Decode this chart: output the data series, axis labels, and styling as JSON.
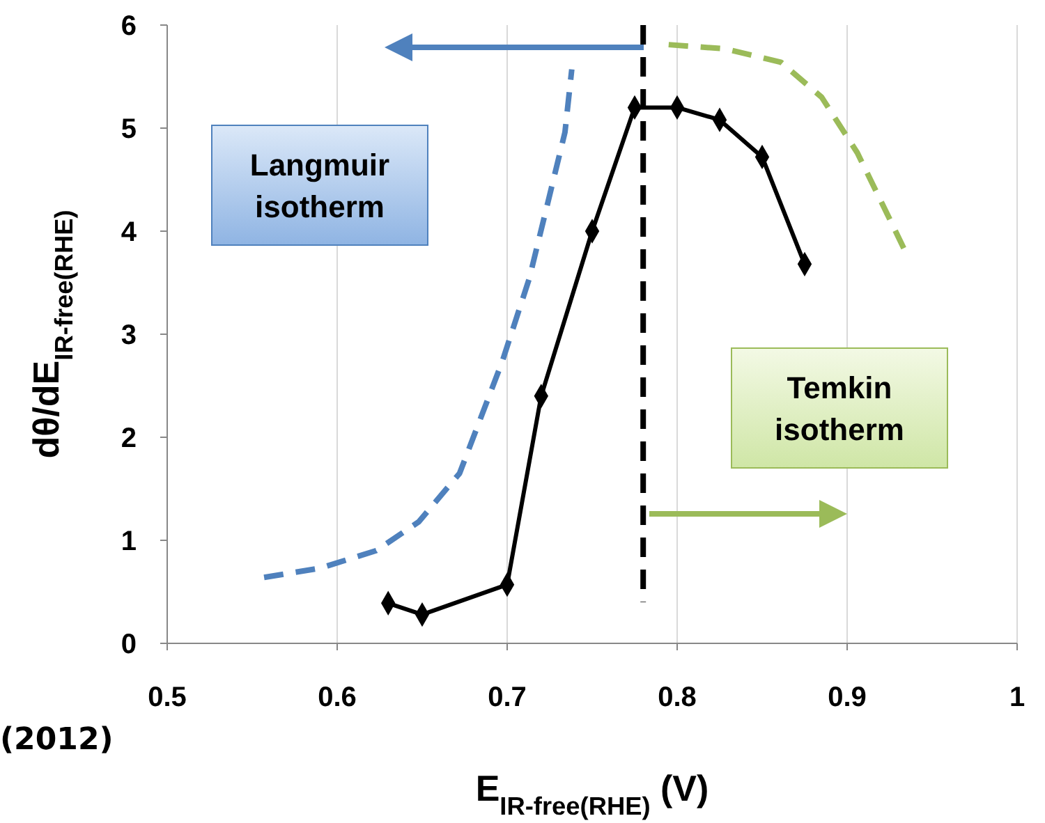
{
  "chart_data": {
    "type": "line",
    "xlabel": "E$_{IR-free(RHE)}$ (V)",
    "ylabel": "dθ/dE$_{IR-free(RHE)}$",
    "xlim": [
      0.5,
      1
    ],
    "xticks": [
      0.5,
      0.6,
      0.7,
      0.8,
      0.9,
      1
    ],
    "ylim": [
      0,
      6
    ],
    "yticks": [
      0,
      1,
      2,
      3,
      4,
      5,
      6
    ],
    "grid": "x",
    "series": [
      {
        "color": "#4f81bd",
        "line_style": "dashed",
        "marker": "none",
        "x": [
          0.557,
          0.59,
          0.623,
          0.648,
          0.672,
          0.697,
          0.713,
          0.725,
          0.734,
          0.738
        ],
        "values": [
          0.64,
          0.73,
          0.9,
          1.18,
          1.65,
          2.73,
          3.54,
          4.35,
          4.96,
          5.57
        ]
      },
      {
        "color": "#9bbb59",
        "line_style": "dashed",
        "marker": "none",
        "x": [
          0.795,
          0.828,
          0.861,
          0.885,
          0.906,
          0.922,
          0.934
        ],
        "values": [
          5.81,
          5.77,
          5.64,
          5.3,
          4.76,
          4.22,
          3.81
        ]
      },
      {
        "color": "#000000",
        "line_style": "solid",
        "marker": "diamond",
        "x": [
          0.63,
          0.65,
          0.7,
          0.72,
          0.75,
          0.775,
          0.8,
          0.825,
          0.85,
          0.875
        ],
        "values": [
          0.39,
          0.28,
          0.57,
          2.4,
          4.0,
          5.2,
          5.2,
          5.08,
          4.72,
          3.68
        ]
      }
    ],
    "ref_lines": [
      {
        "axis": "x",
        "value": 0.78,
        "color": "#000000",
        "line_style": "dashed"
      }
    ],
    "annotations": [
      "Langmuir isotherm",
      "Temkin isotherm",
      "(2012)"
    ]
  }
}
